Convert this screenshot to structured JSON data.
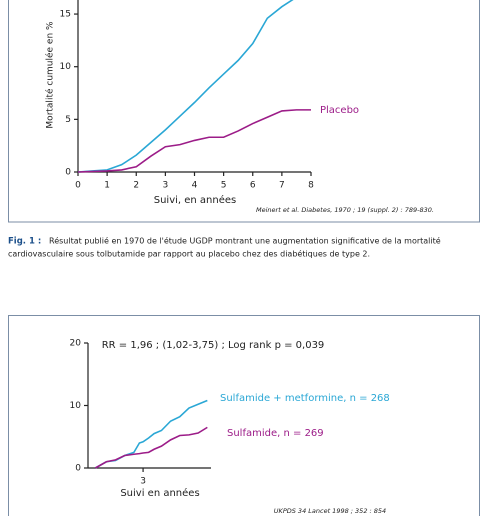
{
  "chart_data": [
    {
      "type": "line",
      "y_label": "Mortalité cumulée en %",
      "x_label": "Suivi, en années",
      "source": "Meinert et al. Diabetes, 1970 ; 19 (suppl. 2) : 789-830.",
      "x": [
        0,
        0.5,
        1,
        1.5,
        2,
        2.5,
        3,
        3.5,
        4,
        4.5,
        5,
        5.5,
        6,
        6.5,
        7,
        7.5,
        8
      ],
      "series": [
        {
          "color": "#2aa7d5",
          "values": [
            0,
            0.1,
            0.2,
            0.7,
            1.6,
            2.8,
            4.0,
            5.3,
            6.6,
            8.0,
            9.3,
            10.6,
            12.2,
            14.6,
            15.7,
            16.6,
            null
          ]
        },
        {
          "name": "Placebo",
          "color": "#9c1c88",
          "values": [
            0,
            0.05,
            0.1,
            0.2,
            0.5,
            1.5,
            2.4,
            2.6,
            3.0,
            3.3,
            3.3,
            3.9,
            4.6,
            5.2,
            5.8,
            5.9,
            5.9
          ]
        }
      ],
      "xlim": [
        0,
        8
      ],
      "xticks": [
        0,
        1,
        2,
        3,
        4,
        5,
        6,
        7,
        8
      ],
      "ylim": [
        0,
        17
      ],
      "yticks": [
        0,
        5,
        10,
        15
      ]
    },
    {
      "type": "line",
      "title": "RR = 1,96 ; (1,02-3,75) ; Log rank p = 0,039",
      "x_label": "Suivi en années",
      "source": "UKPDS 34 Lancet 1998 ; 352 : 854",
      "x": [
        0.4,
        1,
        1.5,
        2,
        2.5,
        2.8,
        3,
        3.3,
        3.6,
        4,
        4.5,
        5,
        5.5,
        6,
        6.5
      ],
      "series": [
        {
          "name": "Sulfamide + metformine, n = 268",
          "color": "#2aa7d5",
          "values": [
            0,
            1,
            1.2,
            2,
            2.5,
            4,
            4.2,
            4.8,
            5.5,
            6,
            7.5,
            8.2,
            9.6,
            10.2,
            10.8
          ]
        },
        {
          "name": "Sulfamide, n = 269",
          "color": "#9c1c88",
          "values": [
            0,
            1,
            1.3,
            2,
            2.2,
            2.3,
            2.4,
            2.5,
            3,
            3.5,
            4.5,
            5.2,
            5.3,
            5.6,
            6.5
          ]
        }
      ],
      "xlim": [
        0,
        6.7
      ],
      "xticks": [
        3
      ],
      "ylim": [
        0,
        20
      ],
      "yticks": [
        0,
        10,
        20
      ]
    }
  ],
  "caption": {
    "label": "Fig. 1 :",
    "lines": [
      "Résultat publié en 1970 de l'étude UGDP montrant une augmentation significative de la mortalité",
      "cardiovasculaire sous tolbutamide par rapport au placebo chez des diabétiques de type 2."
    ]
  }
}
